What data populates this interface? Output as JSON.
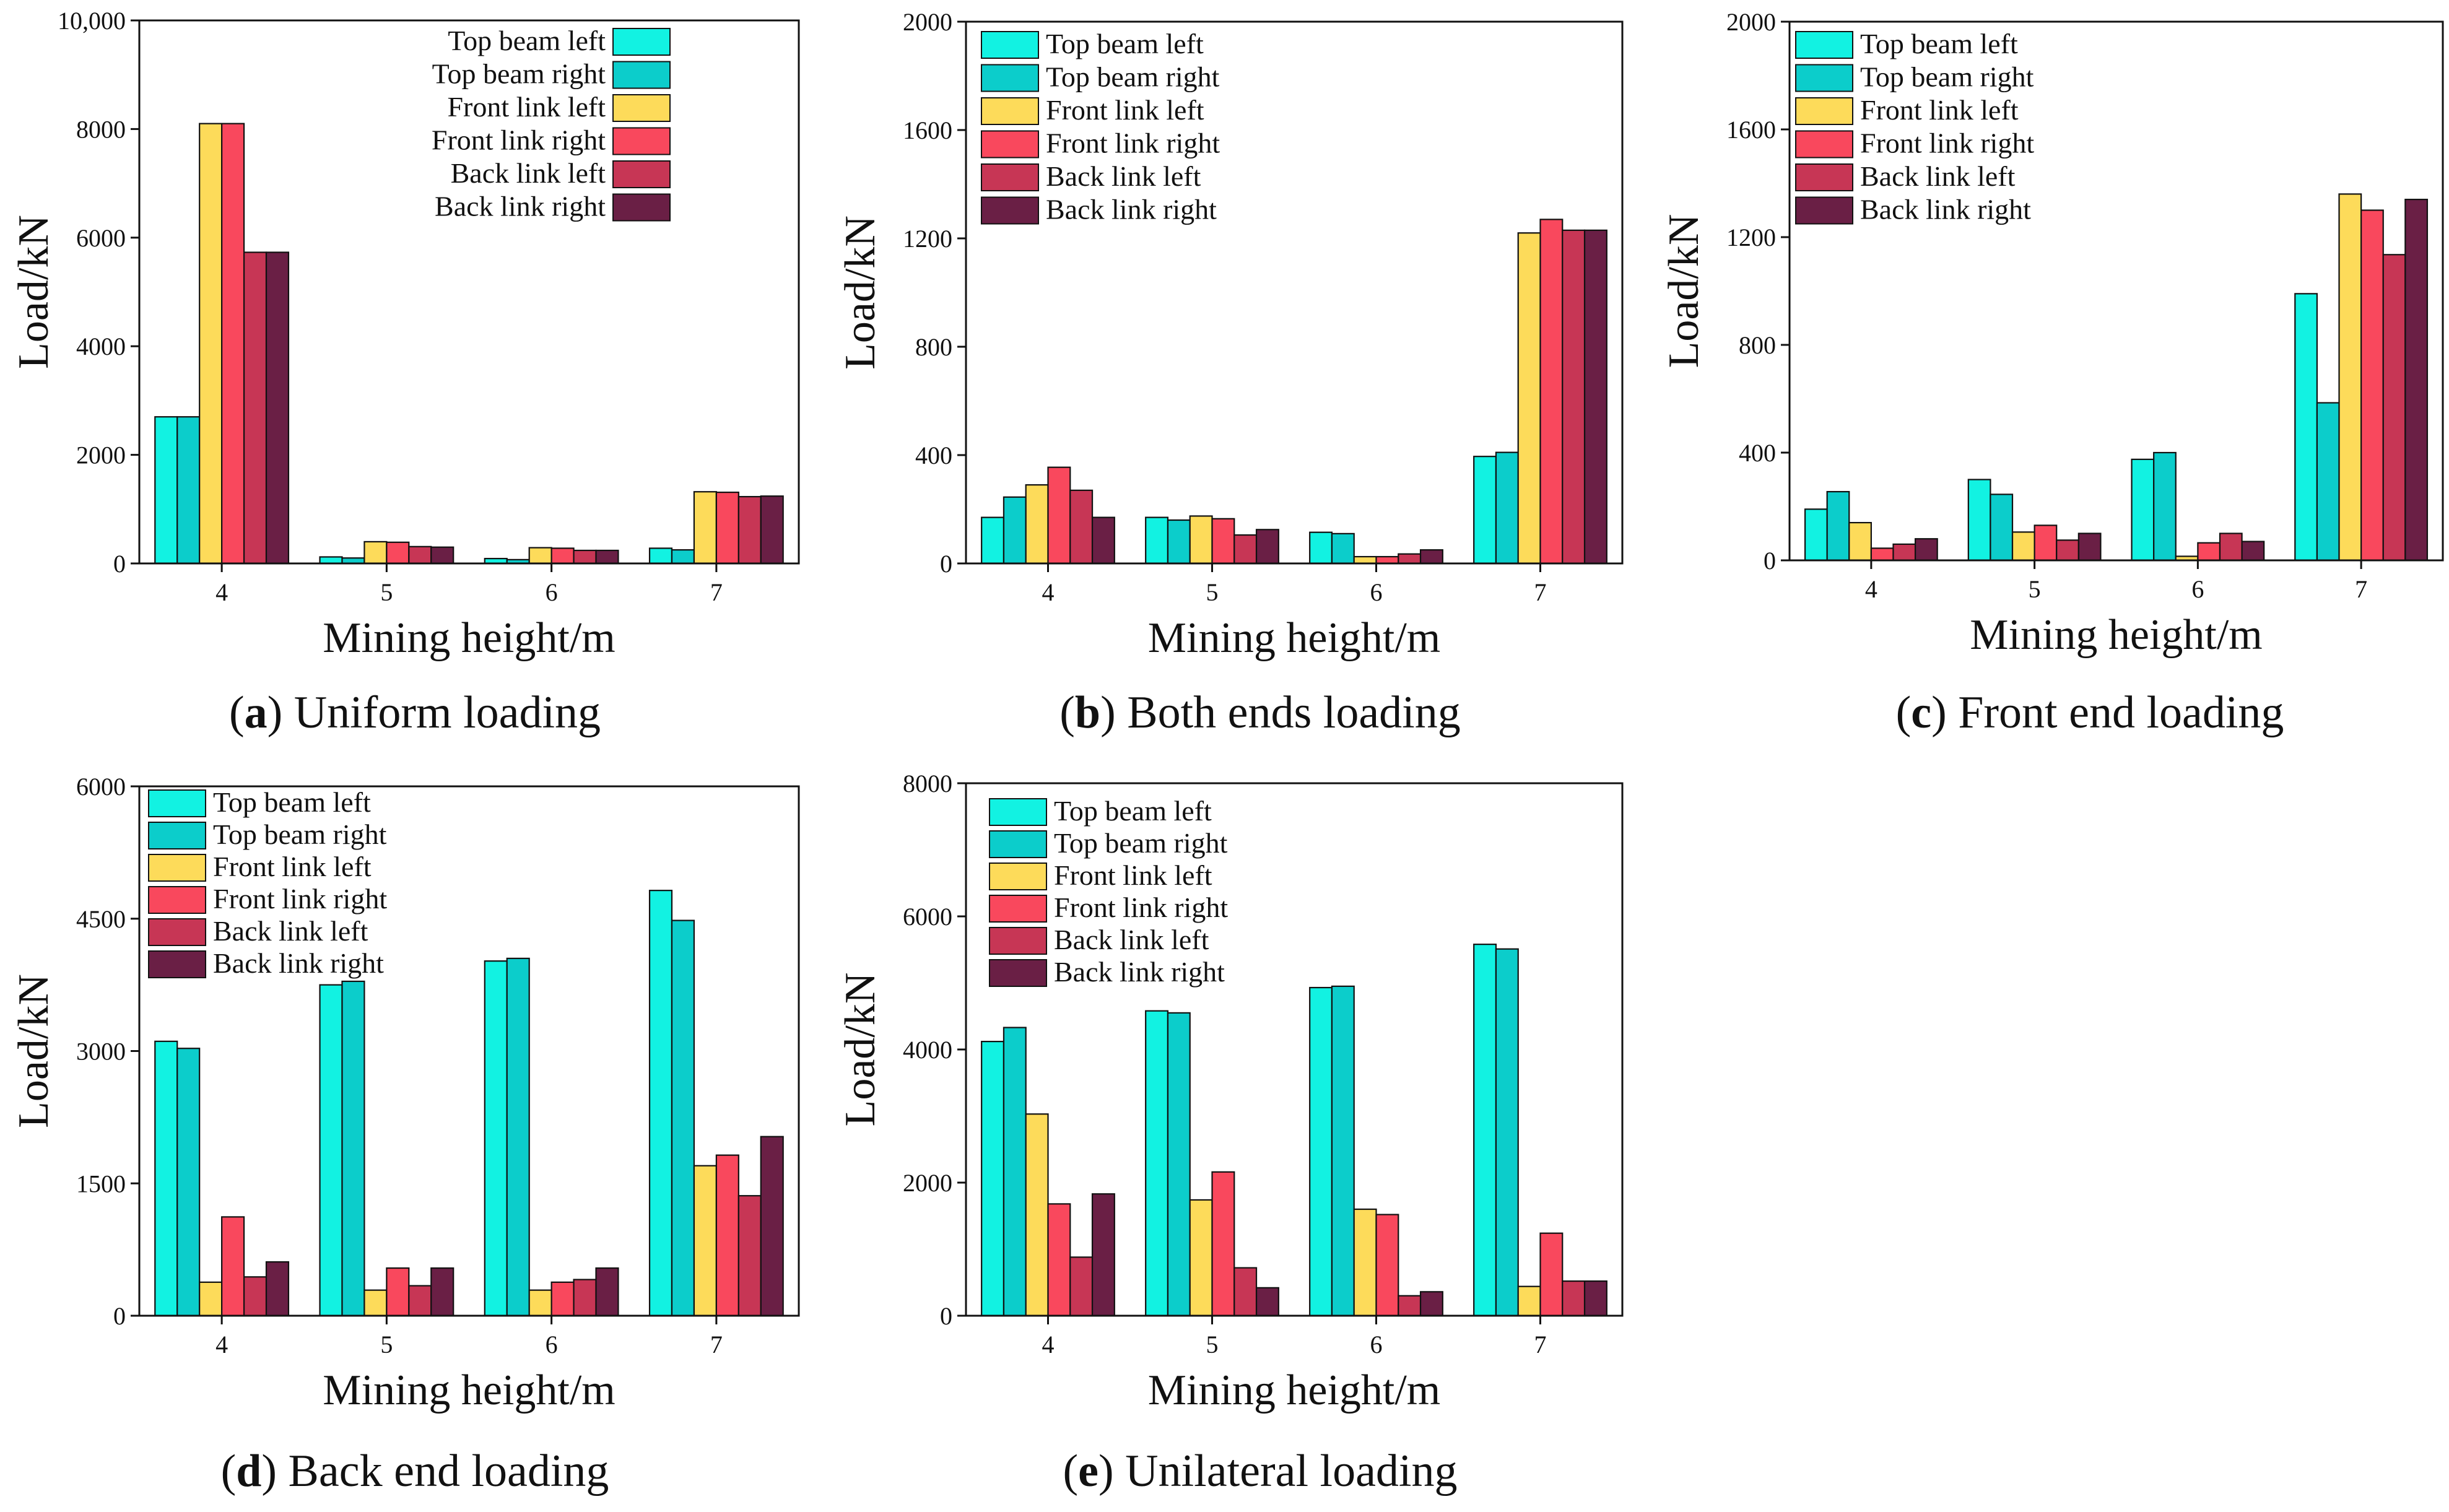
{
  "figure": {
    "legend_entries": [
      "Top beam left",
      "Top beam right",
      "Front link left",
      "Front link right",
      "Back link left",
      "Back link right"
    ]
  },
  "colors": {
    "top_beam_left": "#12f2e2",
    "top_beam_right": "#0ccdcb",
    "front_link_left": "#fddb5a",
    "front_link_right": "#f9485d",
    "back_link_left": "#c73655",
    "back_link_right": "#6a1f45"
  },
  "chart_data": [
    {
      "type": "bar",
      "panel_letter": "a",
      "caption": "Uniform loading",
      "xlabel": "Mining height/m",
      "ylabel": "Load/kN",
      "categories": [
        "4",
        "5",
        "6",
        "7"
      ],
      "ylim": [
        0,
        10000
      ],
      "yticks": [
        0,
        2000,
        4000,
        6000,
        8000,
        10000
      ],
      "ytick_labels": [
        "0",
        "2000",
        "4000",
        "6000",
        "8000",
        "10,000"
      ],
      "legend_position": "top-right",
      "series": [
        {
          "name": "Top beam left",
          "values": [
            2700,
            120,
            90,
            280
          ]
        },
        {
          "name": "Top beam right",
          "values": [
            2700,
            100,
            70,
            250
          ]
        },
        {
          "name": "Front link left",
          "values": [
            8100,
            400,
            290,
            1320
          ]
        },
        {
          "name": "Front link right",
          "values": [
            8100,
            390,
            280,
            1310
          ]
        },
        {
          "name": "Back link left",
          "values": [
            5730,
            310,
            240,
            1230
          ]
        },
        {
          "name": "Back link right",
          "values": [
            5730,
            300,
            240,
            1240
          ]
        }
      ]
    },
    {
      "type": "bar",
      "panel_letter": "b",
      "caption": "Both ends loading",
      "xlabel": "Mining height/m",
      "ylabel": "Load/kN",
      "categories": [
        "4",
        "5",
        "6",
        "7"
      ],
      "ylim": [
        0,
        2000
      ],
      "yticks": [
        0,
        400,
        800,
        1200,
        1600,
        2000
      ],
      "ytick_labels": [
        "0",
        "400",
        "800",
        "1200",
        "1600",
        "2000"
      ],
      "legend_position": "top-left",
      "series": [
        {
          "name": "Top beam left",
          "values": [
            170,
            170,
            115,
            395
          ]
        },
        {
          "name": "Top beam right",
          "values": [
            245,
            160,
            110,
            410
          ]
        },
        {
          "name": "Front link left",
          "values": [
            290,
            175,
            25,
            1220
          ]
        },
        {
          "name": "Front link right",
          "values": [
            355,
            165,
            25,
            1270
          ]
        },
        {
          "name": "Back link left",
          "values": [
            270,
            105,
            35,
            1230
          ]
        },
        {
          "name": "Back link right",
          "values": [
            170,
            125,
            50,
            1230
          ]
        }
      ]
    },
    {
      "type": "bar",
      "panel_letter": "c",
      "caption": "Front end loading",
      "xlabel": "Mining height/m",
      "ylabel": "Load/kN",
      "categories": [
        "4",
        "5",
        "6",
        "7"
      ],
      "ylim": [
        0,
        2000
      ],
      "yticks": [
        0,
        400,
        800,
        1200,
        1600,
        2000
      ],
      "ytick_labels": [
        "0",
        "400",
        "800",
        "1200",
        "1600",
        "2000"
      ],
      "legend_position": "top-left",
      "series": [
        {
          "name": "Top beam left",
          "values": [
            190,
            300,
            375,
            990
          ]
        },
        {
          "name": "Top beam right",
          "values": [
            255,
            245,
            400,
            585
          ]
        },
        {
          "name": "Front link left",
          "values": [
            140,
            105,
            15,
            1360
          ]
        },
        {
          "name": "Front link right",
          "values": [
            45,
            130,
            65,
            1300
          ]
        },
        {
          "name": "Back link left",
          "values": [
            60,
            75,
            100,
            1135
          ]
        },
        {
          "name": "Back link right",
          "values": [
            80,
            100,
            70,
            1340
          ]
        }
      ]
    },
    {
      "type": "bar",
      "panel_letter": "d",
      "caption": "Back end loading",
      "xlabel": "Mining height/m",
      "ylabel": "Load/kN",
      "categories": [
        "4",
        "5",
        "6",
        "7"
      ],
      "ylim": [
        0,
        6000
      ],
      "yticks": [
        0,
        1500,
        3000,
        4500,
        6000
      ],
      "ytick_labels": [
        "0",
        "1500",
        "3000",
        "4500",
        "6000"
      ],
      "legend_position": "top-left",
      "series": [
        {
          "name": "Top beam left",
          "values": [
            3110,
            3750,
            4020,
            4820
          ]
        },
        {
          "name": "Top beam right",
          "values": [
            3030,
            3790,
            4050,
            4480
          ]
        },
        {
          "name": "Front link left",
          "values": [
            380,
            290,
            290,
            1700
          ]
        },
        {
          "name": "Front link right",
          "values": [
            1120,
            540,
            380,
            1820
          ]
        },
        {
          "name": "Back link left",
          "values": [
            440,
            340,
            410,
            1360
          ]
        },
        {
          "name": "Back link right",
          "values": [
            610,
            540,
            540,
            2030
          ]
        }
      ]
    },
    {
      "type": "bar",
      "panel_letter": "e",
      "caption": "Unilateral loading",
      "xlabel": "Mining height/m",
      "ylabel": "Load/kN",
      "categories": [
        "4",
        "5",
        "6",
        "7"
      ],
      "ylim": [
        0,
        8000
      ],
      "yticks": [
        0,
        2000,
        4000,
        6000,
        8000
      ],
      "ytick_labels": [
        "0",
        "2000",
        "4000",
        "6000",
        "8000"
      ],
      "legend_position": "top-left",
      "series": [
        {
          "name": "Top beam left",
          "values": [
            4120,
            4580,
            4930,
            5580
          ]
        },
        {
          "name": "Top beam right",
          "values": [
            4330,
            4550,
            4950,
            5510
          ]
        },
        {
          "name": "Front link left",
          "values": [
            3030,
            1740,
            1600,
            440
          ]
        },
        {
          "name": "Front link right",
          "values": [
            1680,
            2160,
            1520,
            1240
          ]
        },
        {
          "name": "Back link left",
          "values": [
            880,
            720,
            300,
            520
          ]
        },
        {
          "name": "Back link right",
          "values": [
            1830,
            420,
            360,
            520
          ]
        }
      ]
    }
  ]
}
